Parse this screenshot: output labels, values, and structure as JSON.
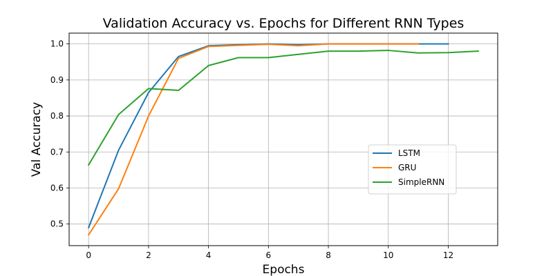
{
  "chart_data": {
    "type": "line",
    "title": "Validation Accuracy vs. Epochs for Different RNN Types",
    "xlabel": "Epochs",
    "ylabel": "Val Accuracy",
    "xlim": [
      -0.65,
      13.65
    ],
    "ylim": [
      0.44,
      1.03
    ],
    "xticks": [
      0,
      2,
      4,
      6,
      8,
      10,
      12
    ],
    "yticks": [
      0.5,
      0.6,
      0.7,
      0.8,
      0.9,
      1.0
    ],
    "grid": true,
    "legend_position": "center-right",
    "series": [
      {
        "name": "LSTM",
        "color": "#1f77b4",
        "x": [
          0,
          1,
          2,
          3,
          4,
          5,
          6,
          7,
          8,
          9,
          10,
          11,
          12
        ],
        "values": [
          0.49,
          0.705,
          0.865,
          0.965,
          0.995,
          0.998,
          1.0,
          0.998,
          1.0,
          1.0,
          1.0,
          1.0,
          1.0
        ]
      },
      {
        "name": "GRU",
        "color": "#ff7f0e",
        "x": [
          0,
          1,
          2,
          3,
          4,
          5,
          6,
          7,
          8,
          9,
          10,
          11
        ],
        "values": [
          0.47,
          0.598,
          0.8,
          0.96,
          0.993,
          0.996,
          0.999,
          0.995,
          1.0,
          1.0,
          1.0,
          1.0
        ]
      },
      {
        "name": "SimpleRNN",
        "color": "#2ca02c",
        "x": [
          0,
          1,
          2,
          3,
          4,
          5,
          6,
          7,
          8,
          9,
          10,
          11,
          12,
          13
        ],
        "values": [
          0.664,
          0.804,
          0.876,
          0.871,
          0.94,
          0.962,
          0.962,
          0.971,
          0.98,
          0.98,
          0.982,
          0.975,
          0.976,
          0.98
        ]
      }
    ]
  }
}
